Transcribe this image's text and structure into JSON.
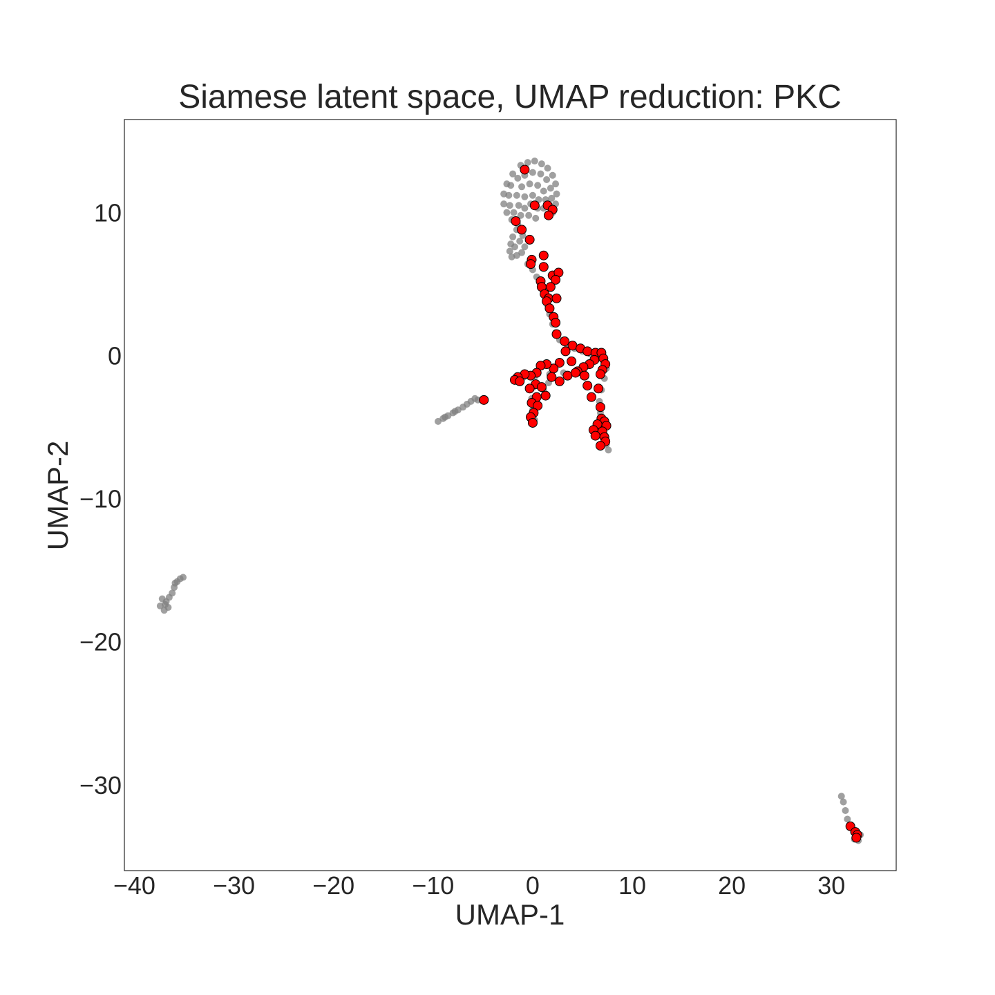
{
  "chart_data": {
    "type": "scatter",
    "title": "Siamese latent space, UMAP reduction: PKC",
    "xlabel": "UMAP-1",
    "ylabel": "UMAP-2",
    "xlim": [
      -41,
      36.5
    ],
    "ylim": [
      -36,
      16.5
    ],
    "grid": false,
    "x_ticks": [
      -40,
      -30,
      -20,
      -10,
      0,
      10,
      20,
      30
    ],
    "x_tick_labels": [
      "−40",
      "−30",
      "−20",
      "−10",
      "0",
      "10",
      "20",
      "30"
    ],
    "y_ticks": [
      10,
      0,
      -10,
      -20,
      -30
    ],
    "y_tick_labels": [
      "10",
      "0",
      "−10",
      "−20",
      "−30"
    ],
    "colors": {
      "background_points": "#808080",
      "highlight_fill": "#ff0000",
      "highlight_edge": "#000000"
    },
    "series": [
      {
        "role": "background",
        "points": [
          [
            -1.2,
            13.3
          ],
          [
            -0.5,
            13.5
          ],
          [
            0.2,
            13.6
          ],
          [
            0.9,
            13.4
          ],
          [
            1.5,
            13.1
          ],
          [
            2.0,
            12.6
          ],
          [
            2.3,
            12.0
          ],
          [
            2.4,
            11.3
          ],
          [
            2.3,
            10.6
          ],
          [
            2.0,
            10.0
          ],
          [
            -2.0,
            12.7
          ],
          [
            -2.6,
            12.0
          ],
          [
            -2.9,
            11.3
          ],
          [
            -2.9,
            10.6
          ],
          [
            -2.6,
            10.0
          ],
          [
            -2.1,
            9.5
          ],
          [
            -1.5,
            9.2
          ],
          [
            -1.5,
            12.4
          ],
          [
            -0.8,
            12.6
          ],
          [
            0.0,
            12.8
          ],
          [
            0.8,
            12.7
          ],
          [
            1.4,
            12.3
          ],
          [
            1.8,
            11.7
          ],
          [
            1.9,
            11.0
          ],
          [
            1.7,
            10.4
          ],
          [
            -2.2,
            11.9
          ],
          [
            -2.4,
            11.2
          ],
          [
            -2.3,
            10.5
          ],
          [
            -1.9,
            10.0
          ],
          [
            -1.1,
            11.8
          ],
          [
            -0.3,
            12.0
          ],
          [
            0.5,
            11.9
          ],
          [
            1.1,
            11.5
          ],
          [
            1.3,
            10.9
          ],
          [
            1.1,
            10.3
          ],
          [
            -1.6,
            11.2
          ],
          [
            -1.4,
            10.5
          ],
          [
            -0.8,
            11.1
          ],
          [
            0.0,
            11.2
          ],
          [
            0.6,
            10.9
          ],
          [
            0.5,
            10.3
          ],
          [
            -0.8,
            10.3
          ],
          [
            -0.2,
            10.6
          ],
          [
            -1.2,
            9.8
          ],
          [
            -0.4,
            9.8
          ],
          [
            0.3,
            9.6
          ],
          [
            -1.6,
            8.8
          ],
          [
            -2.0,
            8.3
          ],
          [
            -2.2,
            7.8
          ],
          [
            -2.3,
            7.3
          ],
          [
            -2.1,
            6.9
          ],
          [
            -1.6,
            7.0
          ],
          [
            -1.1,
            7.2
          ],
          [
            -0.8,
            7.6
          ],
          [
            -1.3,
            8.0
          ],
          [
            -1.8,
            7.6
          ],
          [
            -1.0,
            8.4
          ],
          [
            -0.5,
            6.4
          ],
          [
            0.0,
            6.0
          ],
          [
            0.4,
            5.5
          ],
          [
            0.8,
            5.0
          ],
          [
            1.1,
            4.3
          ],
          [
            1.4,
            3.6
          ],
          [
            1.7,
            2.9
          ],
          [
            2.0,
            2.2
          ],
          [
            2.3,
            1.6
          ],
          [
            2.7,
            1.1
          ],
          [
            3.4,
            0.8
          ],
          [
            4.2,
            0.5
          ],
          [
            5.0,
            0.3
          ],
          [
            5.8,
            0.1
          ],
          [
            6.5,
            0.0
          ],
          [
            7.2,
            -0.2
          ],
          [
            7.4,
            -0.9
          ],
          [
            7.2,
            -1.6
          ],
          [
            6.9,
            -2.4
          ],
          [
            6.7,
            -3.2
          ],
          [
            6.8,
            -4.0
          ],
          [
            7.1,
            -4.8
          ],
          [
            7.3,
            -5.6
          ],
          [
            7.4,
            -6.2
          ],
          [
            7.6,
            -6.6
          ],
          [
            5.9,
            -0.5
          ],
          [
            4.6,
            -1.0
          ],
          [
            3.1,
            -1.2
          ],
          [
            1.7,
            -1.3
          ],
          [
            0.3,
            -1.4
          ],
          [
            -0.9,
            -1.5
          ],
          [
            -1.8,
            -1.6
          ],
          [
            0.1,
            -2.2
          ],
          [
            -0.1,
            -3.0
          ],
          [
            0.0,
            -3.8
          ],
          [
            0.2,
            -4.5
          ],
          [
            1.1,
            -2.4
          ],
          [
            1.6,
            -1.9
          ],
          [
            -9.5,
            -4.6
          ],
          [
            -9.0,
            -4.4
          ],
          [
            -8.5,
            -4.2
          ],
          [
            -8.0,
            -4.0
          ],
          [
            -7.5,
            -3.8
          ],
          [
            -7.0,
            -3.6
          ],
          [
            -6.6,
            -3.4
          ],
          [
            -6.2,
            -3.2
          ],
          [
            -5.8,
            -3.0
          ],
          [
            -5.5,
            -3.1
          ],
          [
            -8.8,
            -4.3
          ],
          [
            -7.8,
            -3.9
          ],
          [
            -37.2,
            -17.0
          ],
          [
            -36.8,
            -17.2
          ],
          [
            -36.6,
            -17.6
          ],
          [
            -37.0,
            -17.8
          ],
          [
            -37.4,
            -17.5
          ],
          [
            -36.9,
            -17.4
          ],
          [
            -36.5,
            -16.9
          ],
          [
            -36.2,
            -16.6
          ],
          [
            -36.0,
            -16.2
          ],
          [
            -35.7,
            -15.8
          ],
          [
            -35.4,
            -15.6
          ],
          [
            -35.9,
            -15.9
          ],
          [
            -35.1,
            -15.5
          ],
          [
            31.0,
            -30.8
          ],
          [
            31.2,
            -31.2
          ],
          [
            31.4,
            -31.8
          ],
          [
            31.6,
            -32.4
          ],
          [
            31.9,
            -32.9
          ],
          [
            32.2,
            -33.3
          ],
          [
            32.5,
            -33.6
          ],
          [
            32.7,
            -33.9
          ],
          [
            32.3,
            -33.8
          ],
          [
            32.9,
            -33.5
          ]
        ]
      },
      {
        "role": "highlight",
        "points": [
          [
            -0.8,
            13.0
          ],
          [
            0.2,
            10.5
          ],
          [
            1.5,
            10.5
          ],
          [
            2.0,
            10.2
          ],
          [
            1.6,
            9.8
          ],
          [
            -1.7,
            9.4
          ],
          [
            -1.1,
            8.8
          ],
          [
            -0.3,
            8.1
          ],
          [
            1.1,
            7.0
          ],
          [
            -0.1,
            6.7
          ],
          [
            -0.2,
            6.4
          ],
          [
            1.1,
            6.2
          ],
          [
            2.0,
            5.6
          ],
          [
            2.6,
            5.8
          ],
          [
            2.3,
            5.3
          ],
          [
            0.8,
            5.2
          ],
          [
            0.9,
            4.8
          ],
          [
            1.8,
            4.8
          ],
          [
            1.2,
            4.3
          ],
          [
            1.6,
            4.0
          ],
          [
            2.4,
            4.0
          ],
          [
            1.4,
            3.8
          ],
          [
            1.7,
            3.3
          ],
          [
            2.1,
            2.7
          ],
          [
            2.3,
            2.3
          ],
          [
            2.4,
            1.5
          ],
          [
            3.2,
            1.0
          ],
          [
            4.0,
            0.7
          ],
          [
            4.8,
            0.5
          ],
          [
            5.5,
            0.3
          ],
          [
            6.3,
            0.2
          ],
          [
            6.9,
            0.2
          ],
          [
            7.1,
            -0.2
          ],
          [
            7.3,
            -0.6
          ],
          [
            7.0,
            -1.0
          ],
          [
            6.8,
            -1.3
          ],
          [
            6.2,
            -0.3
          ],
          [
            5.7,
            -0.6
          ],
          [
            5.1,
            -0.8
          ],
          [
            4.5,
            -1.1
          ],
          [
            3.9,
            -0.4
          ],
          [
            3.3,
            0.3
          ],
          [
            2.7,
            -0.5
          ],
          [
            2.1,
            -0.9
          ],
          [
            1.4,
            -0.6
          ],
          [
            0.8,
            -0.7
          ],
          [
            0.4,
            -1.2
          ],
          [
            -0.2,
            -1.4
          ],
          [
            -0.8,
            -1.3
          ],
          [
            -1.5,
            -1.5
          ],
          [
            -1.8,
            -1.7
          ],
          [
            -1.3,
            -1.8
          ],
          [
            0.3,
            -2.0
          ],
          [
            -0.3,
            -2.3
          ],
          [
            0.9,
            -2.2
          ],
          [
            1.3,
            -2.8
          ],
          [
            0.4,
            -2.9
          ],
          [
            -0.1,
            -3.3
          ],
          [
            0.5,
            -3.5
          ],
          [
            0.1,
            -4.0
          ],
          [
            -0.2,
            -4.3
          ],
          [
            0.0,
            -4.7
          ],
          [
            1.9,
            -1.5
          ],
          [
            2.7,
            -1.8
          ],
          [
            3.5,
            -1.4
          ],
          [
            4.3,
            -1.2
          ],
          [
            5.2,
            -1.4
          ],
          [
            5.5,
            -2.1
          ],
          [
            5.9,
            -2.9
          ],
          [
            6.6,
            -2.3
          ],
          [
            6.8,
            -3.6
          ],
          [
            6.9,
            -4.4
          ],
          [
            7.2,
            -4.6
          ],
          [
            7.4,
            -4.9
          ],
          [
            6.5,
            -4.8
          ],
          [
            6.1,
            -5.2
          ],
          [
            7.0,
            -5.3
          ],
          [
            6.3,
            -5.6
          ],
          [
            7.2,
            -5.7
          ],
          [
            7.3,
            -6.0
          ],
          [
            6.8,
            -6.3
          ],
          [
            -4.9,
            -3.1
          ],
          [
            31.9,
            -32.9
          ],
          [
            32.4,
            -33.3
          ],
          [
            32.6,
            -33.5
          ],
          [
            32.5,
            -33.7
          ]
        ]
      }
    ]
  }
}
